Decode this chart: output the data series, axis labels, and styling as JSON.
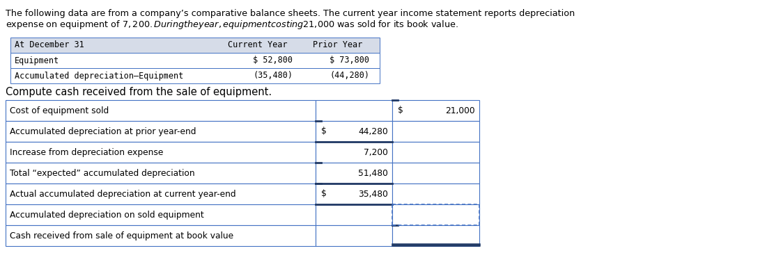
{
  "intro_line1": "The following data are from a company’s comparative balance sheets. The current year income statement reports depreciation",
  "intro_line2": "expense on equipment of $7,200. During the year, equipment costing $21,000 was sold for its book value.",
  "balance_sheet_rows": [
    [
      "At December 31",
      "Current Year",
      "Prior Year"
    ],
    [
      "Equipment",
      "$ 52,800",
      "$ 73,800"
    ],
    [
      "Accumulated depreciation–Equipment",
      "(35,480)",
      "(44,280)"
    ]
  ],
  "compute_label": "Compute cash received from the sale of equipment.",
  "table_rows": [
    {
      "label": "Cost of equipment sold",
      "col1_dollar": "",
      "col1_val": "",
      "col2_dollar": "$",
      "col2_val": "21,000"
    },
    {
      "label": "Accumulated depreciation at prior year-end",
      "col1_dollar": "$",
      "col1_val": "44,280",
      "col2_dollar": "",
      "col2_val": ""
    },
    {
      "label": "Increase from depreciation expense",
      "col1_dollar": "",
      "col1_val": "7,200",
      "col2_dollar": "",
      "col2_val": ""
    },
    {
      "label": "Total “expected” accumulated depreciation",
      "col1_dollar": "",
      "col1_val": "51,480",
      "col2_dollar": "",
      "col2_val": ""
    },
    {
      "label": "Actual accumulated depreciation at current year-end",
      "col1_dollar": "$",
      "col1_val": "35,480",
      "col2_dollar": "",
      "col2_val": ""
    },
    {
      "label": "Accumulated depreciation on sold equipment",
      "col1_dollar": "",
      "col1_val": "",
      "col2_dollar": "",
      "col2_val": ""
    },
    {
      "label": "Cash received from sale of equipment at book value",
      "col1_dollar": "",
      "col1_val": "",
      "col2_dollar": "",
      "col2_val": ""
    }
  ],
  "bg_color": "#ffffff",
  "header_bg": "#d6dce8",
  "cell_bg": "#ffffff",
  "border_color": "#4472c4",
  "dark_blue": "#1f3864",
  "text_color": "#000000",
  "mono_font": "DejaVu Sans Mono",
  "sans_font": "DejaVu Sans"
}
